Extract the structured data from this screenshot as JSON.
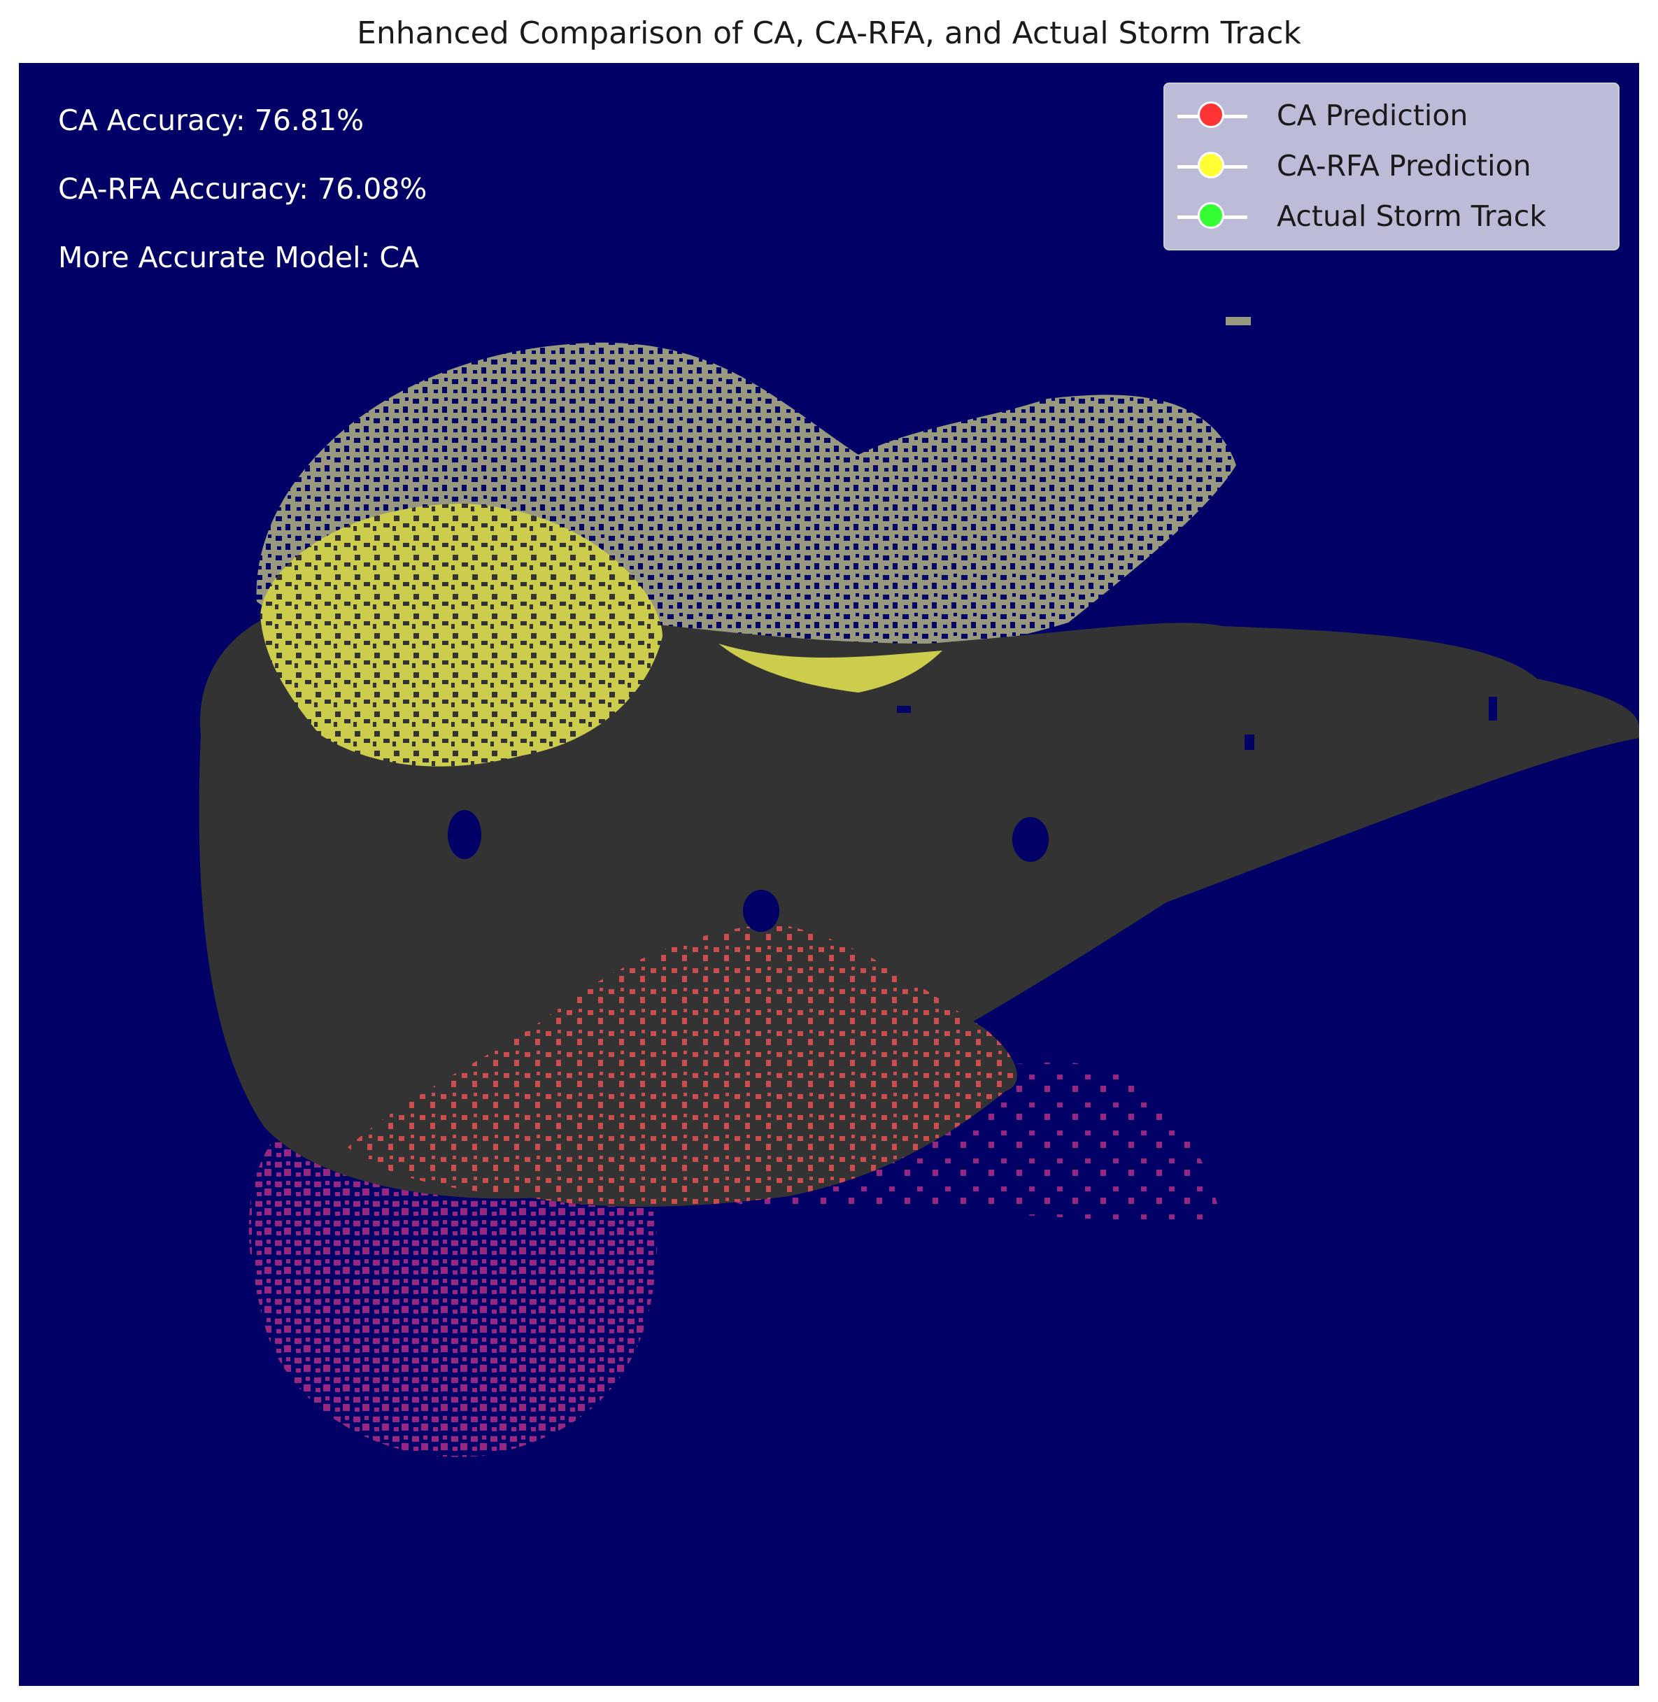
{
  "chart_data": {
    "type": "heatmap",
    "title": "Enhanced Comparison of CA, CA-RFA, and Actual Storm Track",
    "xlabel": "",
    "ylabel": "",
    "axes_visible": false,
    "grid": false,
    "legend_placement": "top-right",
    "background_color": "#000066",
    "annotations": [
      {
        "text": "CA Accuracy: 76.81%",
        "value": 76.81,
        "unit": "%"
      },
      {
        "text": "CA-RFA Accuracy: 76.08%",
        "value": 76.08,
        "unit": "%"
      },
      {
        "text": "More Accurate Model: CA",
        "value": "CA"
      }
    ],
    "legend": [
      {
        "name": "CA Prediction",
        "color": "#ff3333"
      },
      {
        "name": "CA-RFA Prediction",
        "color": "#ffff33"
      },
      {
        "name": "Actual Storm Track",
        "color": "#33ff33"
      }
    ],
    "region_colors": {
      "actual_track": "#333333",
      "ca_rfa_only": "#999980",
      "ca_rfa_overlap": "#cccc4d",
      "ca_only": "#992680",
      "ca_overlap": "#cc4d4d"
    }
  }
}
